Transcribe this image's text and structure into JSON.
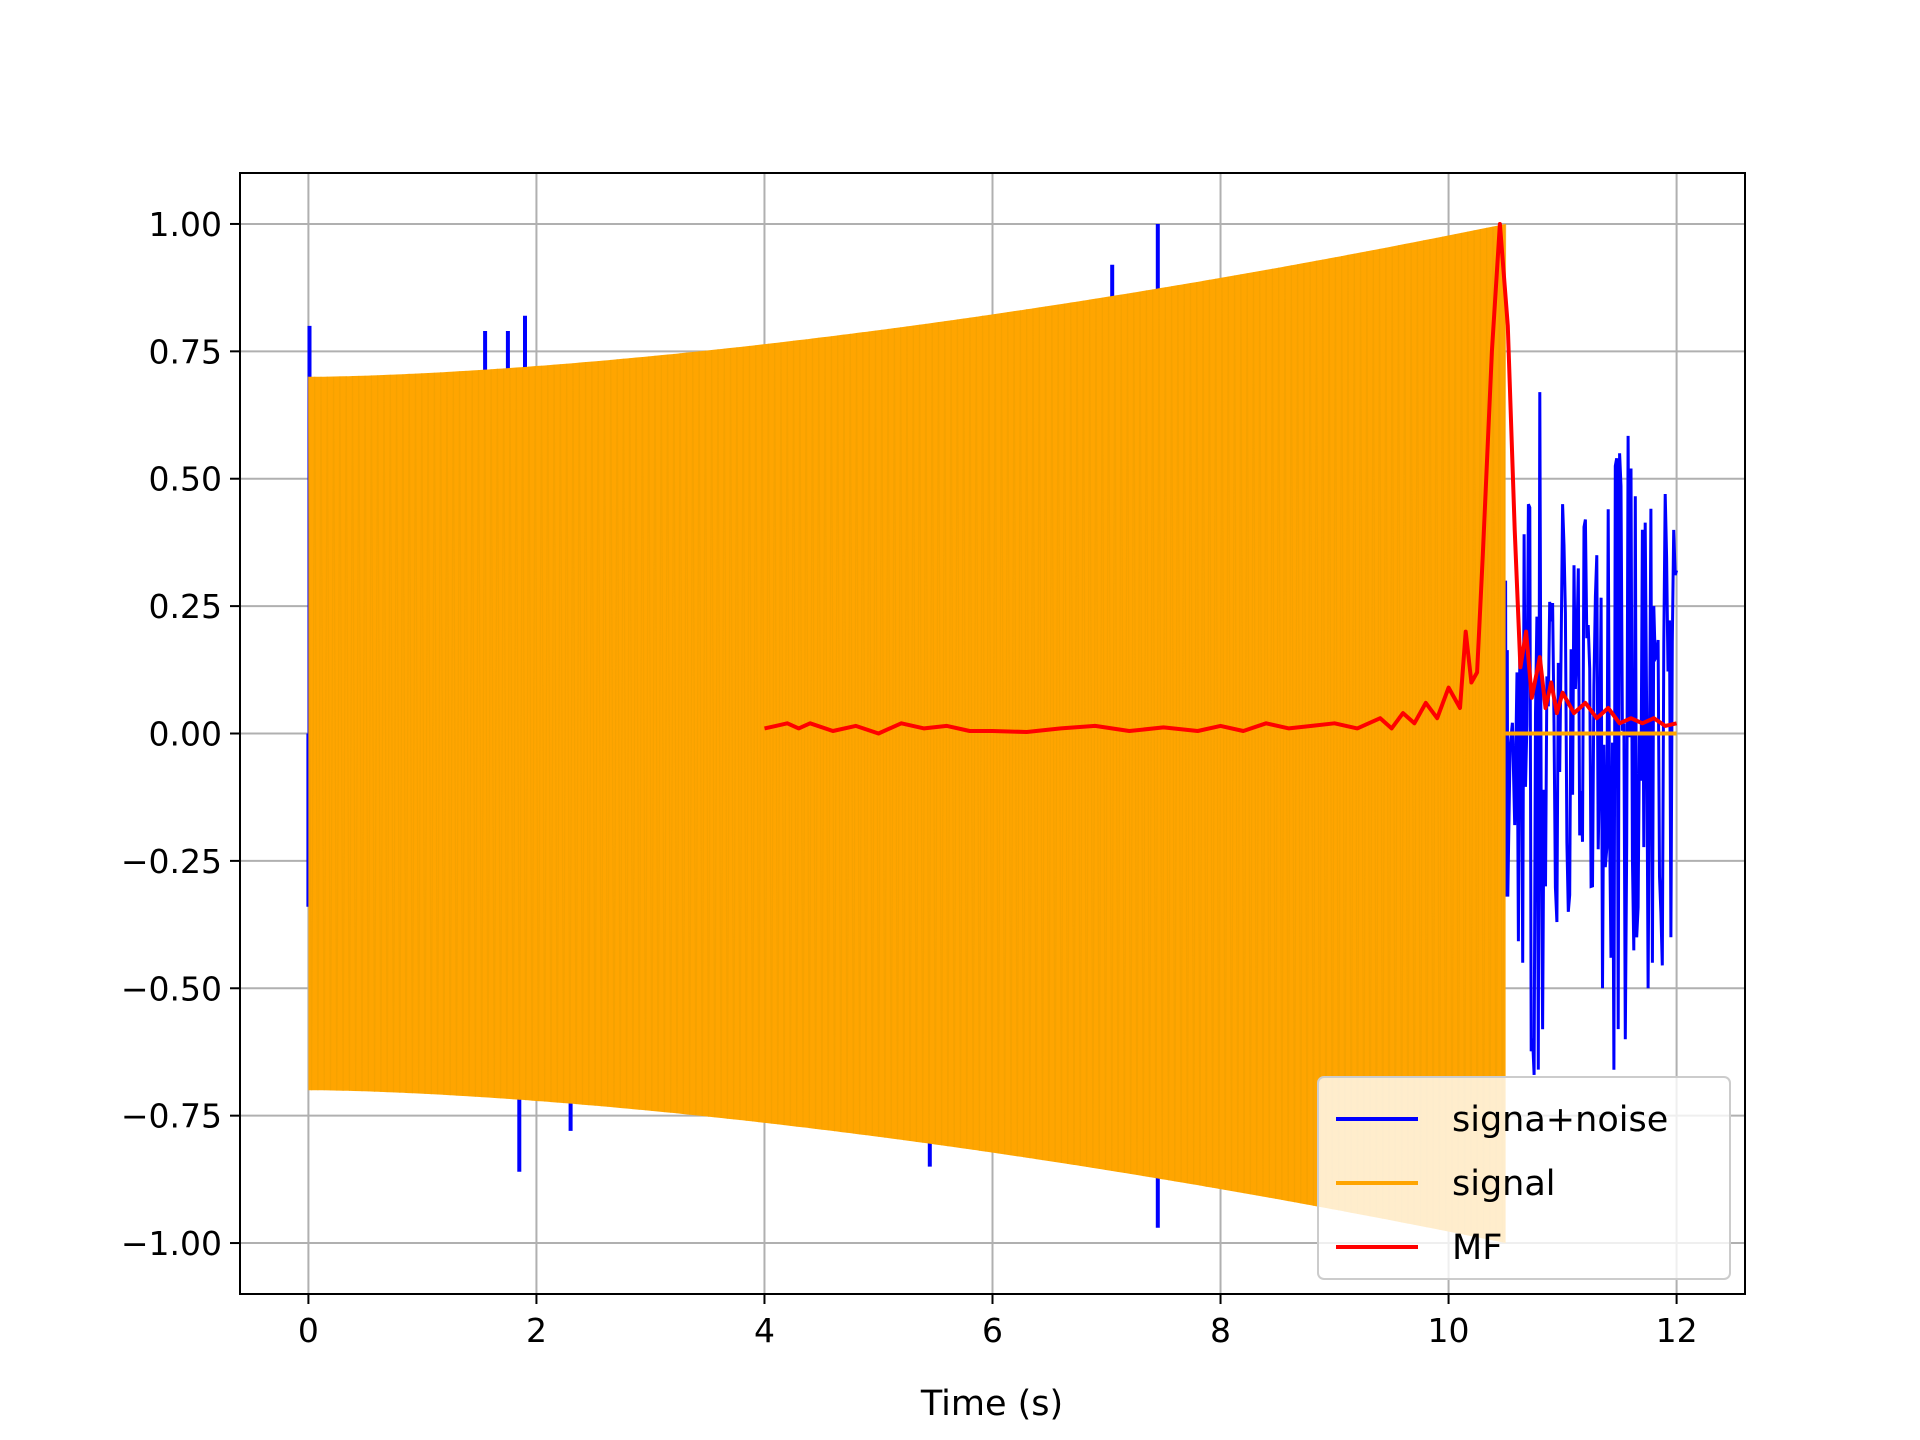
{
  "chart_data": {
    "type": "line",
    "title": "",
    "xlabel": "Time (s)",
    "ylabel": "",
    "xlim": [
      -0.6,
      12.6
    ],
    "ylim": [
      -1.1,
      1.1
    ],
    "grid": true,
    "legend_position": "lower-right",
    "x_ticks": [
      0,
      2,
      4,
      6,
      8,
      10,
      12
    ],
    "x_tick_labels": [
      "0",
      "2",
      "4",
      "6",
      "8",
      "10",
      "12"
    ],
    "y_ticks": [
      1.0,
      0.75,
      0.5,
      0.25,
      0.0,
      -0.25,
      -0.5,
      -0.75,
      -1.0
    ],
    "y_tick_labels": [
      "1.00",
      "0.75",
      "0.50",
      "0.25",
      "0.00",
      "−0.25",
      "−0.50",
      "−0.75",
      "−1.00"
    ],
    "series": [
      {
        "name": "signa+noise",
        "color": "#0000ff",
        "description_values": {
          "chirp_span": [
            0,
            10.5
          ],
          "noise_only_span": [
            10.5,
            12
          ],
          "spikes": [
            {
              "x": 0.01,
              "y": 0.8
            },
            {
              "x": 0.0,
              "y": -0.34
            },
            {
              "x": 1.55,
              "y": 0.79
            },
            {
              "x": 1.75,
              "y": 0.79
            },
            {
              "x": 1.85,
              "y": -0.86
            },
            {
              "x": 1.9,
              "y": 0.82
            },
            {
              "x": 2.3,
              "y": -0.78
            },
            {
              "x": 5.35,
              "y": 0.8
            },
            {
              "x": 5.45,
              "y": -0.85
            },
            {
              "x": 7.05,
              "y": 0.92
            },
            {
              "x": 7.45,
              "y": 1.0
            },
            {
              "x": 7.45,
              "y": -0.97
            },
            {
              "x": 7.8,
              "y": -0.88
            }
          ],
          "tail_points": [
            [
              10.5,
              0.3
            ],
            [
              10.52,
              -0.32
            ],
            [
              10.6,
              0.12
            ],
            [
              10.65,
              -0.45
            ],
            [
              10.7,
              0.45
            ],
            [
              10.75,
              -0.67
            ],
            [
              10.8,
              0.67
            ],
            [
              10.85,
              -0.3
            ],
            [
              10.9,
              0.22
            ],
            [
              10.95,
              -0.37
            ],
            [
              11.0,
              0.45
            ],
            [
              11.05,
              -0.35
            ],
            [
              11.1,
              0.33
            ],
            [
              11.15,
              -0.2
            ],
            [
              11.2,
              0.42
            ],
            [
              11.25,
              -0.3
            ],
            [
              11.3,
              0.35
            ],
            [
              11.35,
              -0.5
            ],
            [
              11.4,
              0.44
            ],
            [
              11.45,
              -0.66
            ],
            [
              11.5,
              0.55
            ],
            [
              11.55,
              -0.6
            ],
            [
              11.6,
              0.52
            ],
            [
              11.65,
              -0.4
            ],
            [
              11.7,
              0.4
            ],
            [
              11.75,
              -0.5
            ],
            [
              11.8,
              0.25
            ],
            [
              11.85,
              -0.28
            ],
            [
              11.9,
              0.47
            ],
            [
              11.95,
              -0.4
            ],
            [
              12.0,
              0.32
            ]
          ]
        }
      },
      {
        "name": "signal",
        "color": "#ffa500",
        "description_values": {
          "type": "chirp",
          "t_start": 0,
          "t_end": 10.5,
          "amplitude_start": 0.7,
          "amplitude_end": 1.0,
          "after_end_value": 0.0,
          "after_end_span": [
            10.5,
            12
          ]
        }
      },
      {
        "name": "MF",
        "color": "#ff0000",
        "points": [
          [
            4.0,
            0.01
          ],
          [
            4.1,
            0.015
          ],
          [
            4.2,
            0.02
          ],
          [
            4.3,
            0.01
          ],
          [
            4.4,
            0.02
          ],
          [
            4.6,
            0.005
          ],
          [
            4.8,
            0.015
          ],
          [
            5.0,
            0.0
          ],
          [
            5.2,
            0.02
          ],
          [
            5.4,
            0.01
          ],
          [
            5.6,
            0.015
          ],
          [
            5.8,
            0.005
          ],
          [
            6.0,
            0.005
          ],
          [
            6.3,
            0.003
          ],
          [
            6.6,
            0.01
          ],
          [
            6.9,
            0.015
          ],
          [
            7.2,
            0.005
          ],
          [
            7.5,
            0.012
          ],
          [
            7.8,
            0.005
          ],
          [
            8.0,
            0.015
          ],
          [
            8.2,
            0.005
          ],
          [
            8.4,
            0.02
          ],
          [
            8.6,
            0.01
          ],
          [
            8.8,
            0.015
          ],
          [
            9.0,
            0.02
          ],
          [
            9.2,
            0.01
          ],
          [
            9.4,
            0.03
          ],
          [
            9.5,
            0.01
          ],
          [
            9.6,
            0.04
          ],
          [
            9.7,
            0.02
          ],
          [
            9.8,
            0.06
          ],
          [
            9.9,
            0.03
          ],
          [
            10.0,
            0.09
          ],
          [
            10.1,
            0.05
          ],
          [
            10.15,
            0.2
          ],
          [
            10.2,
            0.1
          ],
          [
            10.25,
            0.12
          ],
          [
            10.3,
            0.35
          ],
          [
            10.38,
            0.75
          ],
          [
            10.45,
            1.0
          ],
          [
            10.52,
            0.8
          ],
          [
            10.58,
            0.4
          ],
          [
            10.63,
            0.13
          ],
          [
            10.68,
            0.2
          ],
          [
            10.73,
            0.07
          ],
          [
            10.8,
            0.15
          ],
          [
            10.85,
            0.05
          ],
          [
            10.9,
            0.1
          ],
          [
            10.95,
            0.04
          ],
          [
            11.0,
            0.08
          ],
          [
            11.1,
            0.04
          ],
          [
            11.2,
            0.06
          ],
          [
            11.3,
            0.03
          ],
          [
            11.4,
            0.05
          ],
          [
            11.5,
            0.02
          ],
          [
            11.6,
            0.03
          ],
          [
            11.7,
            0.02
          ],
          [
            11.8,
            0.03
          ],
          [
            11.9,
            0.015
          ],
          [
            12.0,
            0.02
          ]
        ]
      }
    ]
  }
}
